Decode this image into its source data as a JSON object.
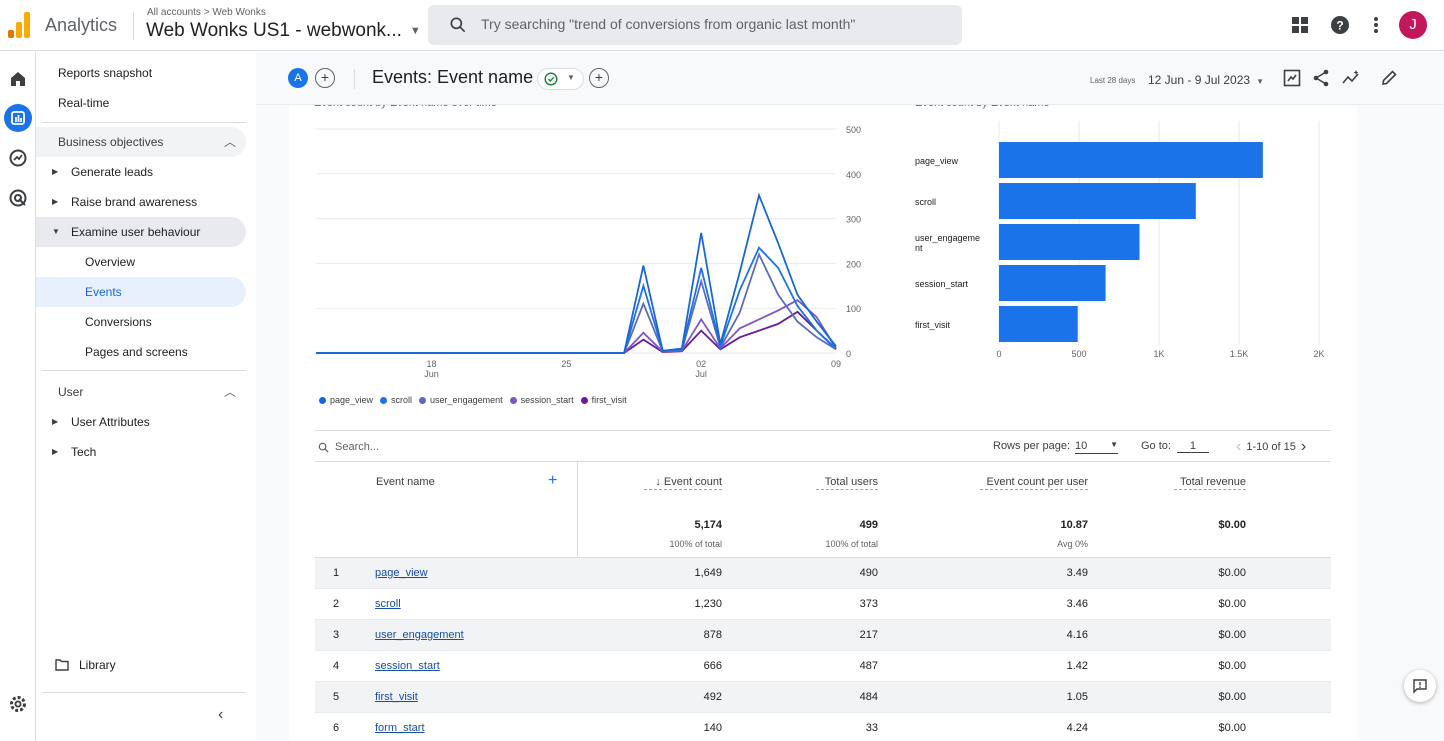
{
  "header": {
    "brand": "Analytics",
    "breadcrumb": "All accounts > Web Wonks",
    "property": "Web Wonks US1 - webwonk...",
    "search_placeholder": "Try searching \"trend of conversions from organic last month\"",
    "avatar_letter": "J"
  },
  "sidebar": {
    "reports_snapshot": "Reports snapshot",
    "realtime": "Real-time",
    "business_objectives": "Business objectives",
    "generate_leads": "Generate leads",
    "raise_brand_awareness": "Raise brand awareness",
    "examine_user_behaviour": "Examine user behaviour",
    "overview": "Overview",
    "events": "Events",
    "conversions": "Conversions",
    "pages_and_screens": "Pages and screens",
    "user": "User",
    "user_attributes": "User Attributes",
    "tech": "Tech",
    "library": "Library"
  },
  "report": {
    "compare_letter": "A",
    "title": "Events: Event name",
    "date_label": "Last 28 days",
    "date_range": "12 Jun - 9 Jul 2023"
  },
  "chart_data": [
    {
      "type": "line",
      "title": "Event count by Event name over time",
      "x_ticks": [
        "18\nJun",
        "25",
        "02\nJul",
        "09"
      ],
      "ylim": [
        0,
        500
      ],
      "y_ticks": [
        0,
        100,
        200,
        300,
        400,
        500
      ],
      "x": [
        "Jun 12",
        "Jun 13",
        "Jun 14",
        "Jun 15",
        "Jun 16",
        "Jun 17",
        "Jun 18",
        "Jun 19",
        "Jun 20",
        "Jun 21",
        "Jun 22",
        "Jun 23",
        "Jun 24",
        "Jun 25",
        "Jun 26",
        "Jun 27",
        "Jun 28",
        "Jun 29",
        "Jun 30",
        "Jul 1",
        "Jul 2",
        "Jul 3",
        "Jul 4",
        "Jul 5",
        "Jul 6",
        "Jul 7",
        "Jul 8",
        "Jul 9"
      ],
      "series": [
        {
          "name": "page_view",
          "color": "#1967d2",
          "values": [
            0,
            0,
            0,
            0,
            0,
            0,
            0,
            0,
            0,
            0,
            0,
            0,
            0,
            0,
            0,
            0,
            0,
            195,
            5,
            10,
            268,
            20,
            180,
            352,
            245,
            130,
            70,
            15
          ]
        },
        {
          "name": "scroll",
          "color": "#1a73e8",
          "values": [
            0,
            0,
            0,
            0,
            0,
            0,
            0,
            0,
            0,
            0,
            0,
            0,
            0,
            0,
            0,
            0,
            0,
            150,
            5,
            8,
            190,
            15,
            140,
            235,
            190,
            105,
            50,
            10
          ]
        },
        {
          "name": "user_engagement",
          "color": "#5c6bc0",
          "values": [
            0,
            0,
            0,
            0,
            0,
            0,
            0,
            0,
            0,
            0,
            0,
            0,
            0,
            0,
            0,
            0,
            0,
            110,
            4,
            6,
            160,
            12,
            90,
            220,
            130,
            70,
            35,
            8
          ]
        },
        {
          "name": "session_start",
          "color": "#7e57c2",
          "values": [
            0,
            0,
            0,
            0,
            0,
            0,
            0,
            0,
            0,
            0,
            0,
            0,
            0,
            0,
            0,
            0,
            0,
            45,
            3,
            5,
            75,
            10,
            55,
            75,
            95,
            118,
            80,
            10
          ]
        },
        {
          "name": "first_visit",
          "color": "#6a1b9a",
          "values": [
            0,
            0,
            0,
            0,
            0,
            0,
            0,
            0,
            0,
            0,
            0,
            0,
            0,
            0,
            0,
            0,
            0,
            30,
            2,
            4,
            50,
            8,
            35,
            50,
            65,
            92,
            50,
            8
          ]
        }
      ]
    },
    {
      "type": "bar",
      "orientation": "horizontal",
      "title": "Event count by Event name",
      "categories": [
        "page_view",
        "scroll",
        "user_engagement",
        "session_start",
        "first_visit"
      ],
      "values": [
        1649,
        1230,
        878,
        666,
        492
      ],
      "x_ticks": [
        "0",
        "500",
        "1K",
        "1.5K",
        "2K"
      ],
      "xlim": [
        0,
        2000
      ],
      "color": "#1a73e8"
    }
  ],
  "legend_labels": [
    "page_view",
    "scroll",
    "user_engagement",
    "session_start",
    "first_visit"
  ],
  "table": {
    "search_placeholder": "Search...",
    "rows_per_page_label": "Rows per page:",
    "rows_per_page": "10",
    "goto_label": "Go to:",
    "goto_value": "1",
    "pagination": "1-10 of 15",
    "headers": {
      "event_name": "Event name",
      "event_count": "Event count",
      "total_users": "Total users",
      "event_count_per_user": "Event count per user",
      "total_revenue": "Total revenue"
    },
    "totals": {
      "event_count": "5,174",
      "event_count_sub": "100% of total",
      "total_users": "499",
      "total_users_sub": "100% of total",
      "per_user": "10.87",
      "per_user_sub": "Avg 0%",
      "revenue": "$0.00"
    },
    "rows": [
      {
        "idx": "1",
        "name": "page_view",
        "count": "1,649",
        "users": "490",
        "per_user": "3.49",
        "revenue": "$0.00"
      },
      {
        "idx": "2",
        "name": "scroll",
        "count": "1,230",
        "users": "373",
        "per_user": "3.46",
        "revenue": "$0.00"
      },
      {
        "idx": "3",
        "name": "user_engagement",
        "count": "878",
        "users": "217",
        "per_user": "4.16",
        "revenue": "$0.00"
      },
      {
        "idx": "4",
        "name": "session_start",
        "count": "666",
        "users": "487",
        "per_user": "1.42",
        "revenue": "$0.00"
      },
      {
        "idx": "5",
        "name": "first_visit",
        "count": "492",
        "users": "484",
        "per_user": "1.05",
        "revenue": "$0.00"
      },
      {
        "idx": "6",
        "name": "form_start",
        "count": "140",
        "users": "33",
        "per_user": "4.24",
        "revenue": "$0.00"
      }
    ]
  }
}
